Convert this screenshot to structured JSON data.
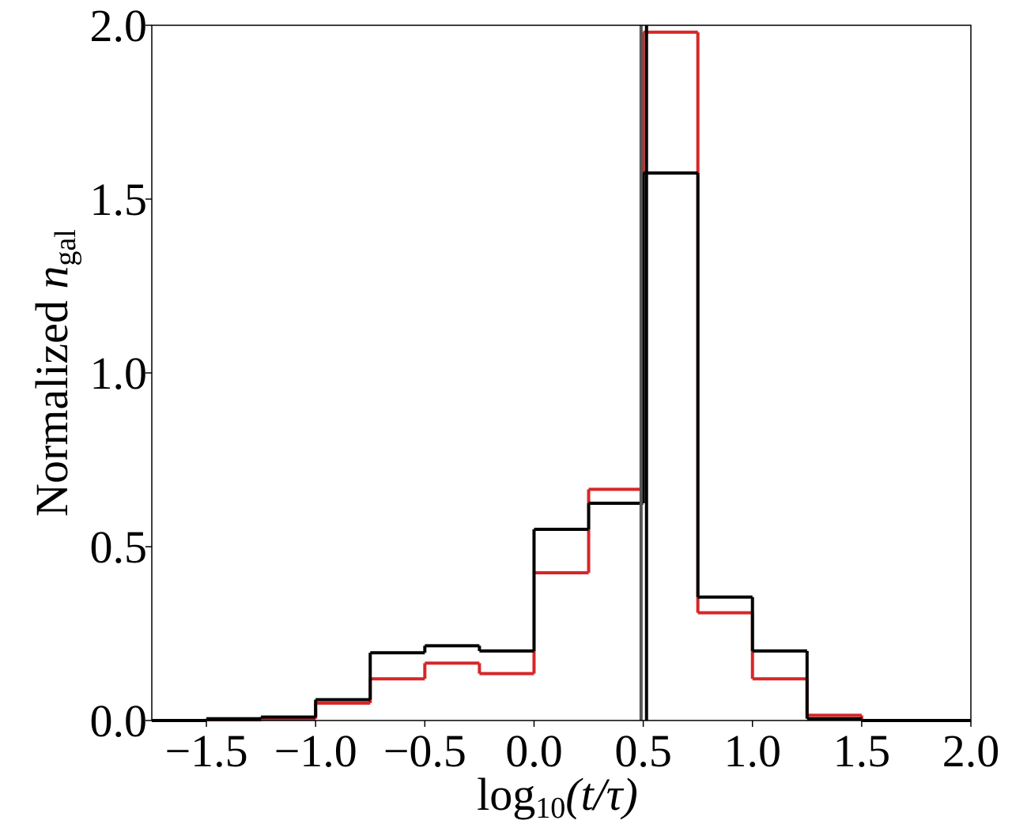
{
  "chart_data": {
    "type": "histogram",
    "bins": [
      -1.75,
      -1.5,
      -1.25,
      -1.0,
      -0.75,
      -0.5,
      -0.25,
      0.0,
      0.25,
      0.5,
      0.75,
      1.0,
      1.25,
      1.5,
      1.75,
      2.0
    ],
    "series": [
      {
        "color": "#d62728",
        "values": [
          0,
          0.002,
          0.005,
          0.05,
          0.12,
          0.165,
          0.135,
          0.425,
          0.665,
          1.98,
          0.31,
          0.12,
          0.015,
          0,
          0
        ]
      },
      {
        "color": "#000000",
        "values": [
          0,
          0.005,
          0.01,
          0.06,
          0.195,
          0.215,
          0.2,
          0.55,
          0.625,
          1.575,
          0.355,
          0.2,
          0.005,
          0,
          0
        ]
      }
    ],
    "vlines": [
      {
        "x": 0.49,
        "color": "#555555"
      },
      {
        "x": 0.515,
        "color": "#000000"
      }
    ],
    "xlim": [
      -1.75,
      2.0
    ],
    "xticks": [
      {
        "value": -1.5,
        "label": "−1.5"
      },
      {
        "value": -1.0,
        "label": "−1.0"
      },
      {
        "value": -0.5,
        "label": "−0.5"
      },
      {
        "value": 0,
        "label": "0.0"
      },
      {
        "value": 0.5,
        "label": "0.5"
      },
      {
        "value": 1,
        "label": "1.0"
      },
      {
        "value": 1.5,
        "label": "1.5"
      },
      {
        "value": 2,
        "label": "2.0"
      }
    ],
    "ylim": [
      0,
      2.0
    ],
    "yticks": [
      {
        "value": 0,
        "label": "0.0"
      },
      {
        "value": 0.5,
        "label": "0.5"
      },
      {
        "value": 1,
        "label": "1.0"
      },
      {
        "value": 1.5,
        "label": "1.5"
      },
      {
        "value": 2,
        "label": "2.0"
      }
    ],
    "xlabel": {
      "func": "log",
      "sub": "10",
      "arg": "(t/τ)"
    },
    "ylabel": {
      "text": "Normalized ",
      "var": "n",
      "sub": "gal"
    }
  }
}
